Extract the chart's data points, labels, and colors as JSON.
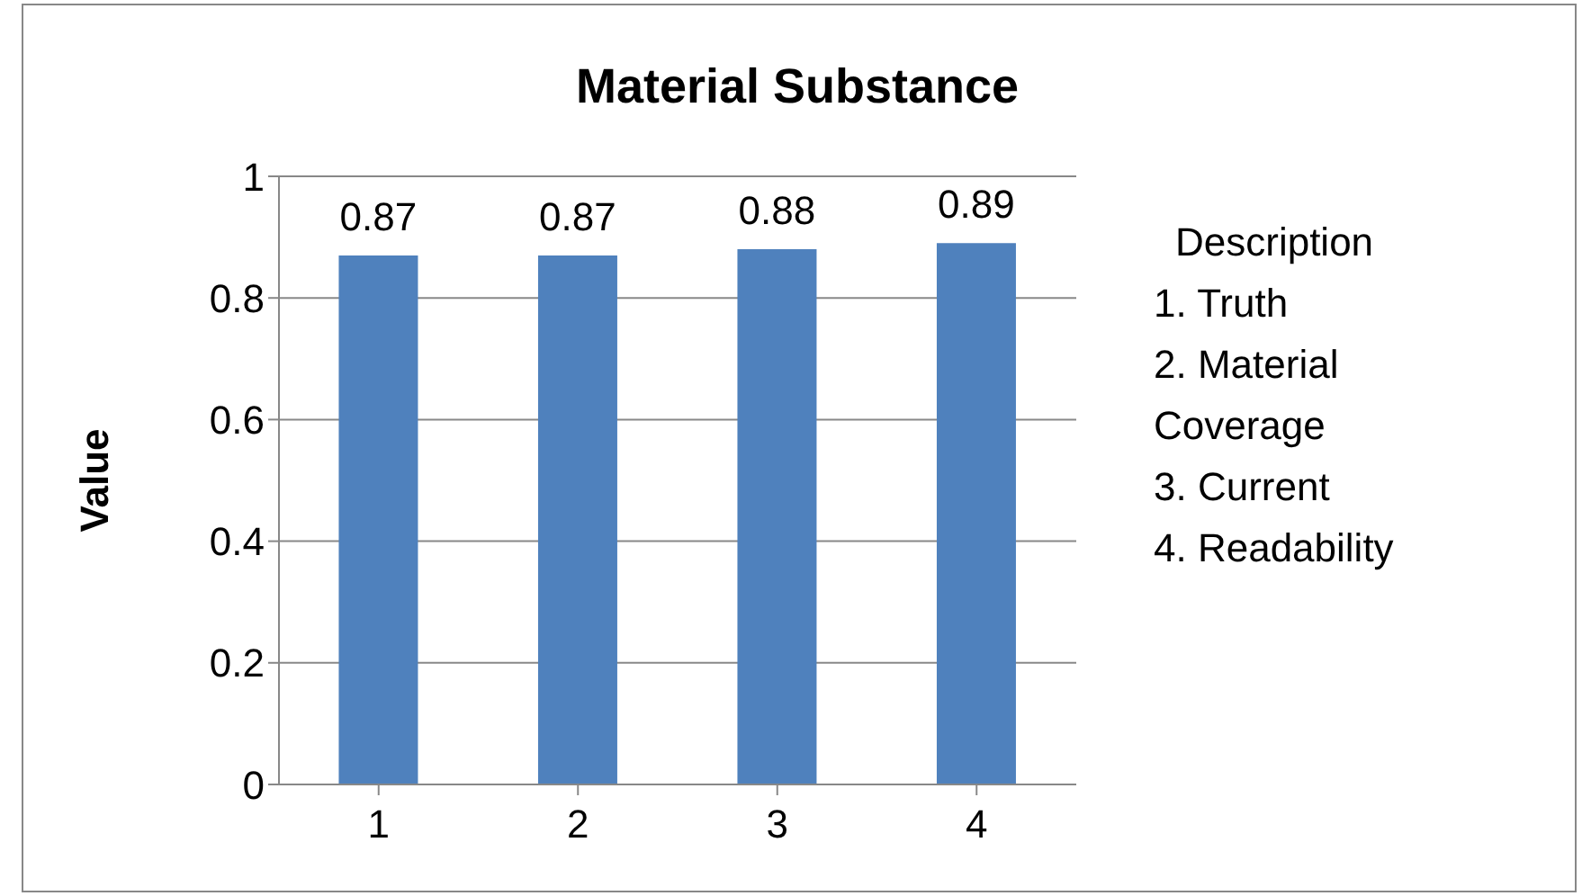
{
  "chart_data": {
    "type": "bar",
    "title": "Material Substance",
    "ylabel": "Value",
    "categories": [
      "1",
      "2",
      "3",
      "4"
    ],
    "series": [
      {
        "color": "#4f81bd",
        "values": [
          0.87,
          0.87,
          0.88,
          0.89
        ]
      }
    ],
    "ylim": [
      0,
      1
    ],
    "yticks": [
      0,
      0.2,
      0.4,
      0.6,
      0.8,
      1
    ],
    "grid": "y",
    "data_labels": true,
    "annotations": [
      "Description",
      "1. Truth",
      "2. Material Coverage",
      "3. Current",
      "4. Readability"
    ]
  }
}
